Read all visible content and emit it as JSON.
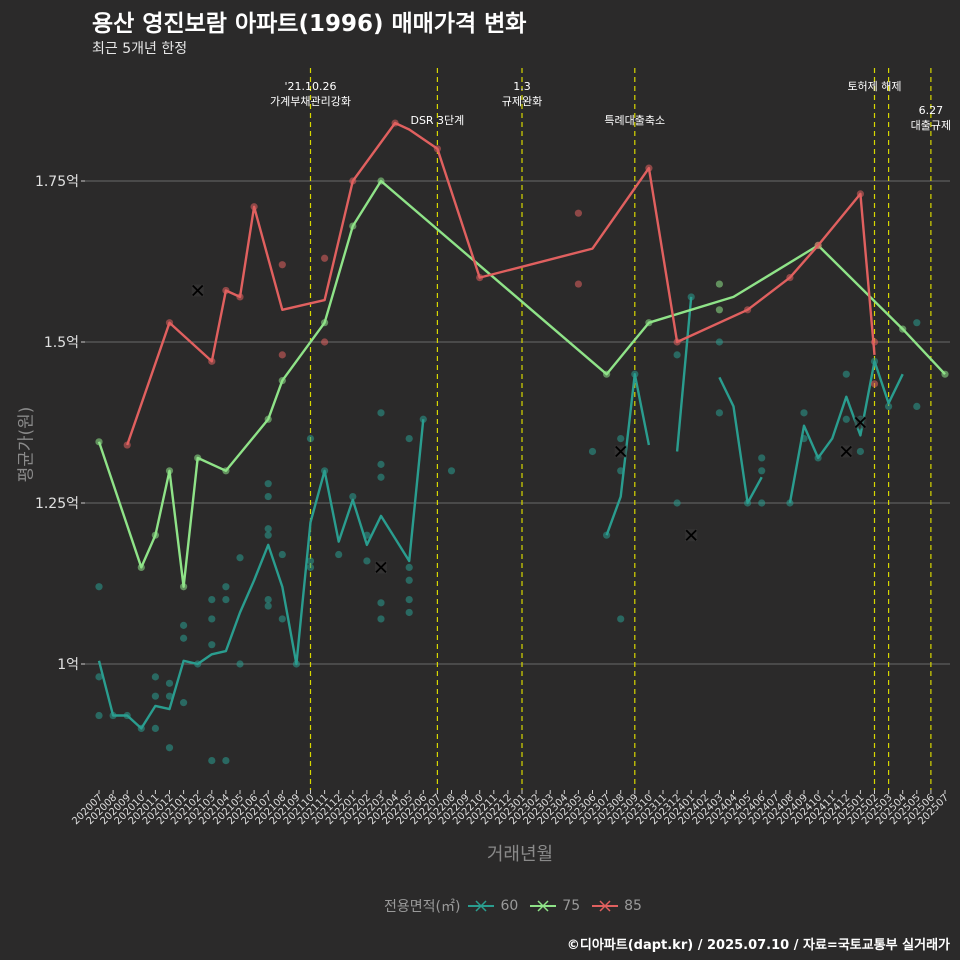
{
  "title": "용산 영진보람 아파트(1996) 매매가격 변화",
  "subtitle": "최근 5개년 한정",
  "caption": "©디아파트(dapt.kr) / 2025.07.10 / 자료=국토교통부 실거래가",
  "colors": {
    "background": "#2b2a2a",
    "60": "#2a9d8f",
    "75": "#8fe388",
    "85": "#e0605f",
    "event_line": "#d7d700",
    "grid": "#6a6a6a"
  },
  "chart_data": {
    "type": "line",
    "xlabel": "거래년월",
    "ylabel": "평균가(원)",
    "categories": [
      "202007",
      "202008",
      "202009",
      "202010",
      "202011",
      "202012",
      "202101",
      "202102",
      "202103",
      "202104",
      "202105",
      "202106",
      "202107",
      "202108",
      "202109",
      "202110",
      "202111",
      "202112",
      "202201",
      "202202",
      "202203",
      "202204",
      "202205",
      "202206",
      "202207",
      "202208",
      "202209",
      "202210",
      "202211",
      "202212",
      "202301",
      "202302",
      "202303",
      "202304",
      "202305",
      "202306",
      "202307",
      "202308",
      "202309",
      "202310",
      "202311",
      "202312",
      "202401",
      "202402",
      "202403",
      "202404",
      "202405",
      "202406",
      "202407",
      "202408",
      "202409",
      "202410",
      "202411",
      "202412",
      "202501",
      "202502",
      "202503",
      "202504",
      "202505",
      "202506",
      "202507"
    ],
    "y_ticks": [
      1.0,
      1.25,
      1.5,
      1.75
    ],
    "y_tick_labels": [
      "1억",
      "1.25억",
      "1.5억",
      "1.75억"
    ],
    "ylim": [
      0.8,
      2.0
    ],
    "grid": true,
    "legend": {
      "title": "전용면적(㎡)",
      "position": "bottom",
      "entries": [
        "60",
        "75",
        "85"
      ]
    },
    "series": [
      {
        "name": "60",
        "color": "#2a9d8f",
        "line_segments": [
          [
            [
              "202007",
              1.005
            ],
            [
              "202008",
              0.92
            ],
            [
              "202009",
              0.92
            ],
            [
              "202010",
              0.9
            ],
            [
              "202011",
              0.935
            ],
            [
              "202012",
              0.93
            ],
            [
              "202101",
              1.005
            ],
            [
              "202102",
              1.0
            ],
            [
              "202103",
              1.015
            ],
            [
              "202104",
              1.02
            ],
            [
              "202105",
              1.08
            ],
            [
              "202106",
              1.13
            ],
            [
              "202107",
              1.185
            ],
            [
              "202108",
              1.12
            ],
            [
              "202109",
              1.0
            ],
            [
              "202110",
              1.22
            ],
            [
              "202111",
              1.3
            ],
            [
              "202112",
              1.19
            ],
            [
              "202201",
              1.255
            ],
            [
              "202202",
              1.185
            ],
            [
              "202203",
              1.23
            ],
            [
              "202204",
              1.195
            ],
            [
              "202205",
              1.16
            ],
            [
              "202206",
              1.38
            ]
          ],
          [
            [
              "202307",
              1.2
            ],
            [
              "202308",
              1.26
            ],
            [
              "202309",
              1.45
            ],
            [
              "202310",
              1.34
            ]
          ],
          [
            [
              "202312",
              1.33
            ],
            [
              "202401",
              1.57
            ]
          ],
          [
            [
              "202403",
              1.445
            ],
            [
              "202404",
              1.4
            ],
            [
              "202405",
              1.25
            ],
            [
              "202406",
              1.29
            ]
          ],
          [
            [
              "202408",
              1.25
            ],
            [
              "202409",
              1.37
            ],
            [
              "202410",
              1.32
            ],
            [
              "202411",
              1.35
            ],
            [
              "202412",
              1.415
            ],
            [
              "202501",
              1.355
            ],
            [
              "202502",
              1.47
            ],
            [
              "202503",
              1.405
            ],
            [
              "202504",
              1.45
            ]
          ]
        ],
        "points": [
          [
            "202007",
            1.12
          ],
          [
            "202007",
            0.98
          ],
          [
            "202007",
            0.92
          ],
          [
            "202008",
            0.92
          ],
          [
            "202009",
            0.92
          ],
          [
            "202010",
            0.9
          ],
          [
            "202011",
            0.98
          ],
          [
            "202011",
            0.95
          ],
          [
            "202011",
            0.9
          ],
          [
            "202012",
            0.97
          ],
          [
            "202012",
            0.95
          ],
          [
            "202012",
            0.87
          ],
          [
            "202101",
            1.06
          ],
          [
            "202101",
            1.04
          ],
          [
            "202101",
            0.94
          ],
          [
            "202102",
            1.0
          ],
          [
            "202103",
            1.1
          ],
          [
            "202103",
            1.07
          ],
          [
            "202103",
            1.03
          ],
          [
            "202103",
            0.85
          ],
          [
            "202104",
            1.12
          ],
          [
            "202104",
            1.1
          ],
          [
            "202104",
            0.85
          ],
          [
            "202105",
            1.165
          ],
          [
            "202105",
            1.0
          ],
          [
            "202107",
            1.28
          ],
          [
            "202107",
            1.26
          ],
          [
            "202107",
            1.21
          ],
          [
            "202107",
            1.2
          ],
          [
            "202107",
            1.1
          ],
          [
            "202107",
            1.09
          ],
          [
            "202108",
            1.17
          ],
          [
            "202108",
            1.07
          ],
          [
            "202109",
            1.0
          ],
          [
            "202110",
            1.35
          ],
          [
            "202110",
            1.16
          ],
          [
            "202110",
            1.15
          ],
          [
            "202111",
            1.3
          ],
          [
            "202112",
            1.17
          ],
          [
            "202201",
            1.26
          ],
          [
            "202202",
            1.2
          ],
          [
            "202202",
            1.16
          ],
          [
            "202203",
            1.39
          ],
          [
            "202203",
            1.31
          ],
          [
            "202203",
            1.29
          ],
          [
            "202203",
            1.095
          ],
          [
            "202203",
            1.07
          ],
          [
            "202205",
            1.35
          ],
          [
            "202205",
            1.15
          ],
          [
            "202205",
            1.13
          ],
          [
            "202205",
            1.1
          ],
          [
            "202205",
            1.08
          ],
          [
            "202206",
            1.38
          ],
          [
            "202208",
            1.3
          ],
          [
            "202306",
            1.33
          ],
          [
            "202307",
            1.2
          ],
          [
            "202308",
            1.35
          ],
          [
            "202308",
            1.3
          ],
          [
            "202308",
            1.07
          ],
          [
            "202309",
            1.45
          ],
          [
            "202312",
            1.48
          ],
          [
            "202312",
            1.25
          ],
          [
            "202401",
            1.57
          ],
          [
            "202403",
            1.5
          ],
          [
            "202403",
            1.39
          ],
          [
            "202405",
            1.25
          ],
          [
            "202406",
            1.32
          ],
          [
            "202406",
            1.3
          ],
          [
            "202406",
            1.25
          ],
          [
            "202408",
            1.25
          ],
          [
            "202409",
            1.39
          ],
          [
            "202409",
            1.35
          ],
          [
            "202410",
            1.32
          ],
          [
            "202412",
            1.45
          ],
          [
            "202412",
            1.38
          ],
          [
            "202501",
            1.38
          ],
          [
            "202501",
            1.33
          ],
          [
            "202502",
            1.47
          ],
          [
            "202503",
            1.4
          ],
          [
            "202505",
            1.53
          ],
          [
            "202505",
            1.4
          ]
        ],
        "cancelled": [
          [
            "202203",
            1.15
          ],
          [
            "202308",
            1.33
          ],
          [
            "202401",
            1.2
          ],
          [
            "202412",
            1.33
          ],
          [
            "202501",
            1.375
          ]
        ]
      },
      {
        "name": "75",
        "color": "#8fe388",
        "line_segments": [
          [
            [
              "202007",
              1.345
            ],
            [
              "202010",
              1.15
            ],
            [
              "202011",
              1.2
            ],
            [
              "202012",
              1.3
            ],
            [
              "202101",
              1.12
            ],
            [
              "202102",
              1.32
            ],
            [
              "202104",
              1.3
            ],
            [
              "202107",
              1.38
            ],
            [
              "202108",
              1.44
            ],
            [
              "202111",
              1.53
            ],
            [
              "202201",
              1.68
            ],
            [
              "202203",
              1.75
            ],
            [
              "202307",
              1.45
            ],
            [
              "202310",
              1.53
            ],
            [
              "202404",
              1.57
            ],
            [
              "202410",
              1.65
            ],
            [
              "202504",
              1.52
            ],
            [
              "202507",
              1.45
            ]
          ]
        ],
        "points": [
          [
            "202007",
            1.345
          ],
          [
            "202010",
            1.15
          ],
          [
            "202011",
            1.2
          ],
          [
            "202012",
            1.3
          ],
          [
            "202101",
            1.12
          ],
          [
            "202102",
            1.32
          ],
          [
            "202104",
            1.3
          ],
          [
            "202107",
            1.38
          ],
          [
            "202108",
            1.44
          ],
          [
            "202111",
            1.53
          ],
          [
            "202201",
            1.68
          ],
          [
            "202203",
            1.75
          ],
          [
            "202307",
            1.45
          ],
          [
            "202310",
            1.53
          ],
          [
            "202403",
            1.59
          ],
          [
            "202403",
            1.55
          ],
          [
            "202410",
            1.65
          ],
          [
            "202504",
            1.52
          ],
          [
            "202507",
            1.45
          ]
        ],
        "cancelled": []
      },
      {
        "name": "85",
        "color": "#e0605f",
        "line_segments": [
          [
            [
              "202009",
              1.34
            ],
            [
              "202012",
              1.53
            ],
            [
              "202103",
              1.47
            ],
            [
              "202104",
              1.58
            ],
            [
              "202105",
              1.57
            ],
            [
              "202106",
              1.71
            ],
            [
              "202108",
              1.55
            ],
            [
              "202111",
              1.565
            ],
            [
              "202201",
              1.75
            ],
            [
              "202204",
              1.84
            ],
            [
              "202205",
              1.83
            ],
            [
              "202207",
              1.8
            ],
            [
              "202210",
              1.6
            ],
            [
              "202306",
              1.645
            ],
            [
              "202310",
              1.77
            ],
            [
              "202312",
              1.5
            ],
            [
              "202405",
              1.55
            ],
            [
              "202408",
              1.6
            ],
            [
              "202410",
              1.65
            ],
            [
              "202501",
              1.73
            ],
            [
              "202502",
              1.48
            ]
          ]
        ],
        "points": [
          [
            "202009",
            1.34
          ],
          [
            "202012",
            1.53
          ],
          [
            "202103",
            1.47
          ],
          [
            "202104",
            1.58
          ],
          [
            "202105",
            1.57
          ],
          [
            "202106",
            1.71
          ],
          [
            "202108",
            1.62
          ],
          [
            "202108",
            1.48
          ],
          [
            "202111",
            1.63
          ],
          [
            "202111",
            1.5
          ],
          [
            "202201",
            1.75
          ],
          [
            "202204",
            1.84
          ],
          [
            "202207",
            1.8
          ],
          [
            "202210",
            1.6
          ],
          [
            "202305",
            1.7
          ],
          [
            "202305",
            1.59
          ],
          [
            "202310",
            1.77
          ],
          [
            "202312",
            1.5
          ],
          [
            "202405",
            1.55
          ],
          [
            "202408",
            1.6
          ],
          [
            "202410",
            1.65
          ],
          [
            "202501",
            1.73
          ],
          [
            "202502",
            1.5
          ],
          [
            "202502",
            1.435
          ]
        ],
        "cancelled": [
          [
            "202102",
            1.58
          ]
        ]
      }
    ],
    "events": [
      {
        "month": "202110",
        "lines": [
          "'21.10.26",
          "가계부채관리강화"
        ],
        "level": 0
      },
      {
        "month": "202207",
        "lines": [
          "DSR 3단계"
        ],
        "level": 1
      },
      {
        "month": "202301",
        "lines": [
          "1.3",
          "규제완화"
        ],
        "level": 0
      },
      {
        "month": "202309",
        "lines": [
          "특례대출축소"
        ],
        "level": 1
      },
      {
        "month": "202502",
        "lines": [
          "토허제 해제"
        ],
        "level": 0
      },
      {
        "month": "202503",
        "lines": [],
        "level": 0
      },
      {
        "month": "202506",
        "lines": [
          "6.27",
          "대출규제"
        ],
        "level": 2
      }
    ]
  }
}
